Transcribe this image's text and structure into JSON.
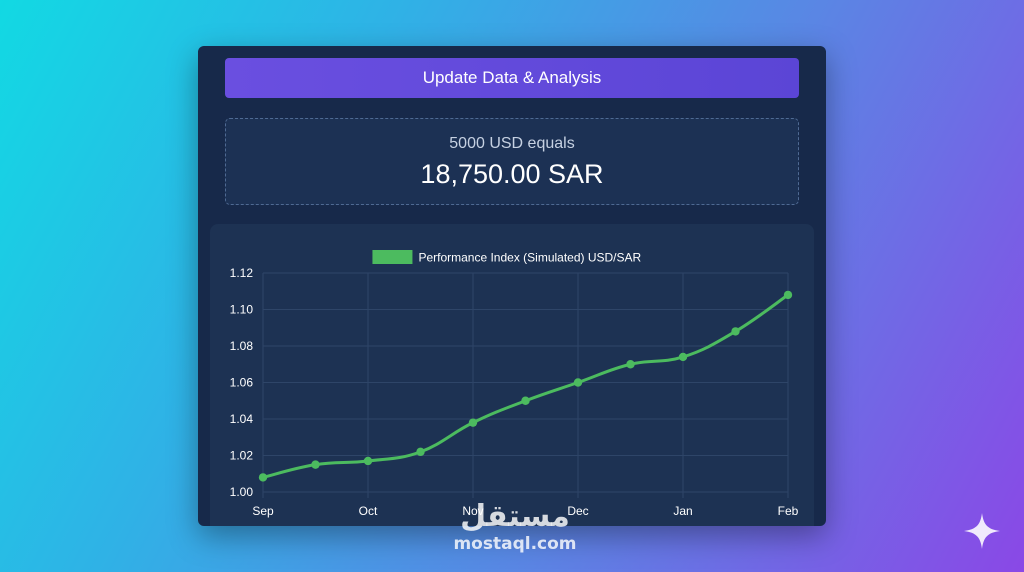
{
  "update_button": {
    "label": "Update Data & Analysis"
  },
  "conversion": {
    "label": "5000 USD equals",
    "value": "18,750.00 SAR"
  },
  "chart_data": {
    "type": "line",
    "title": "",
    "legend": {
      "label": "Performance Index (Simulated) USD/SAR",
      "placement": "top-center"
    },
    "x_ticks": [
      "Sep",
      "Oct",
      "Nov",
      "Dec",
      "Jan",
      "Feb"
    ],
    "x": [
      0,
      0.5,
      1,
      1.5,
      2,
      2.5,
      3,
      3.5,
      4,
      4.5,
      5
    ],
    "y_ticks": [
      1.0,
      1.02,
      1.04,
      1.06,
      1.08,
      1.1,
      1.12
    ],
    "ylim": [
      1.0,
      1.12
    ],
    "grid": true,
    "series": [
      {
        "name": "Performance Index (Simulated) USD/SAR",
        "color": "#4cbb5f",
        "values": [
          1.008,
          1.015,
          1.017,
          1.022,
          1.038,
          1.05,
          1.06,
          1.07,
          1.074,
          1.088,
          1.108
        ]
      }
    ]
  },
  "watermark": {
    "arabic": "مستقل",
    "latin": "mostaql.com"
  },
  "colors": {
    "card_bg": "#17294a",
    "button_bg": "#5b45d6",
    "line": "#4cbb5f",
    "grid": "#2e4568"
  }
}
